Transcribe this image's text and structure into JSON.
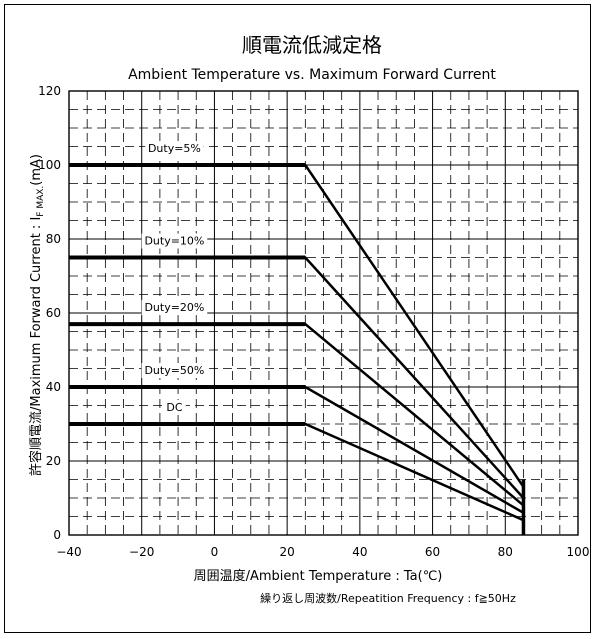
{
  "chart_data": {
    "type": "line",
    "title": "順電流低減定格",
    "subtitle": "Ambient Temperature vs. Maximum Forward Current",
    "xlabel": "周囲温度/Ambient Temperature : Ta(℃)",
    "ylabel": "許容順電流/Maximum Forward Current : I",
    "ylabel_sub": "F MAX.",
    "ylabel_unit": "(mA)",
    "note": "繰り返し周波数/Repeatition Frequency : f≧50Hz",
    "xlim": [
      -40,
      100
    ],
    "ylim": [
      0,
      120
    ],
    "x_ticks": [
      "-40",
      "-20",
      "0",
      "20",
      "40",
      "60",
      "80",
      "100"
    ],
    "y_ticks": [
      "0",
      "20",
      "40",
      "60",
      "80",
      "100",
      "120"
    ],
    "grid": true,
    "series": [
      {
        "name": "Duty=5%",
        "x": [
          -40,
          25,
          85
        ],
        "y": [
          100,
          100,
          13
        ]
      },
      {
        "name": "Duty=10%",
        "x": [
          -40,
          25,
          85
        ],
        "y": [
          75,
          75,
          10
        ]
      },
      {
        "name": "Duty=20%",
        "x": [
          -40,
          25,
          85
        ],
        "y": [
          57,
          57,
          8
        ]
      },
      {
        "name": "Duty=50%",
        "x": [
          -40,
          25,
          85
        ],
        "y": [
          40,
          40,
          6
        ]
      },
      {
        "name": "DC",
        "x": [
          -40,
          25,
          85
        ],
        "y": [
          30,
          30,
          4
        ]
      }
    ],
    "vertical_marker": {
      "x": 85,
      "y_range": [
        0,
        15
      ]
    },
    "line_color": "#000000"
  }
}
